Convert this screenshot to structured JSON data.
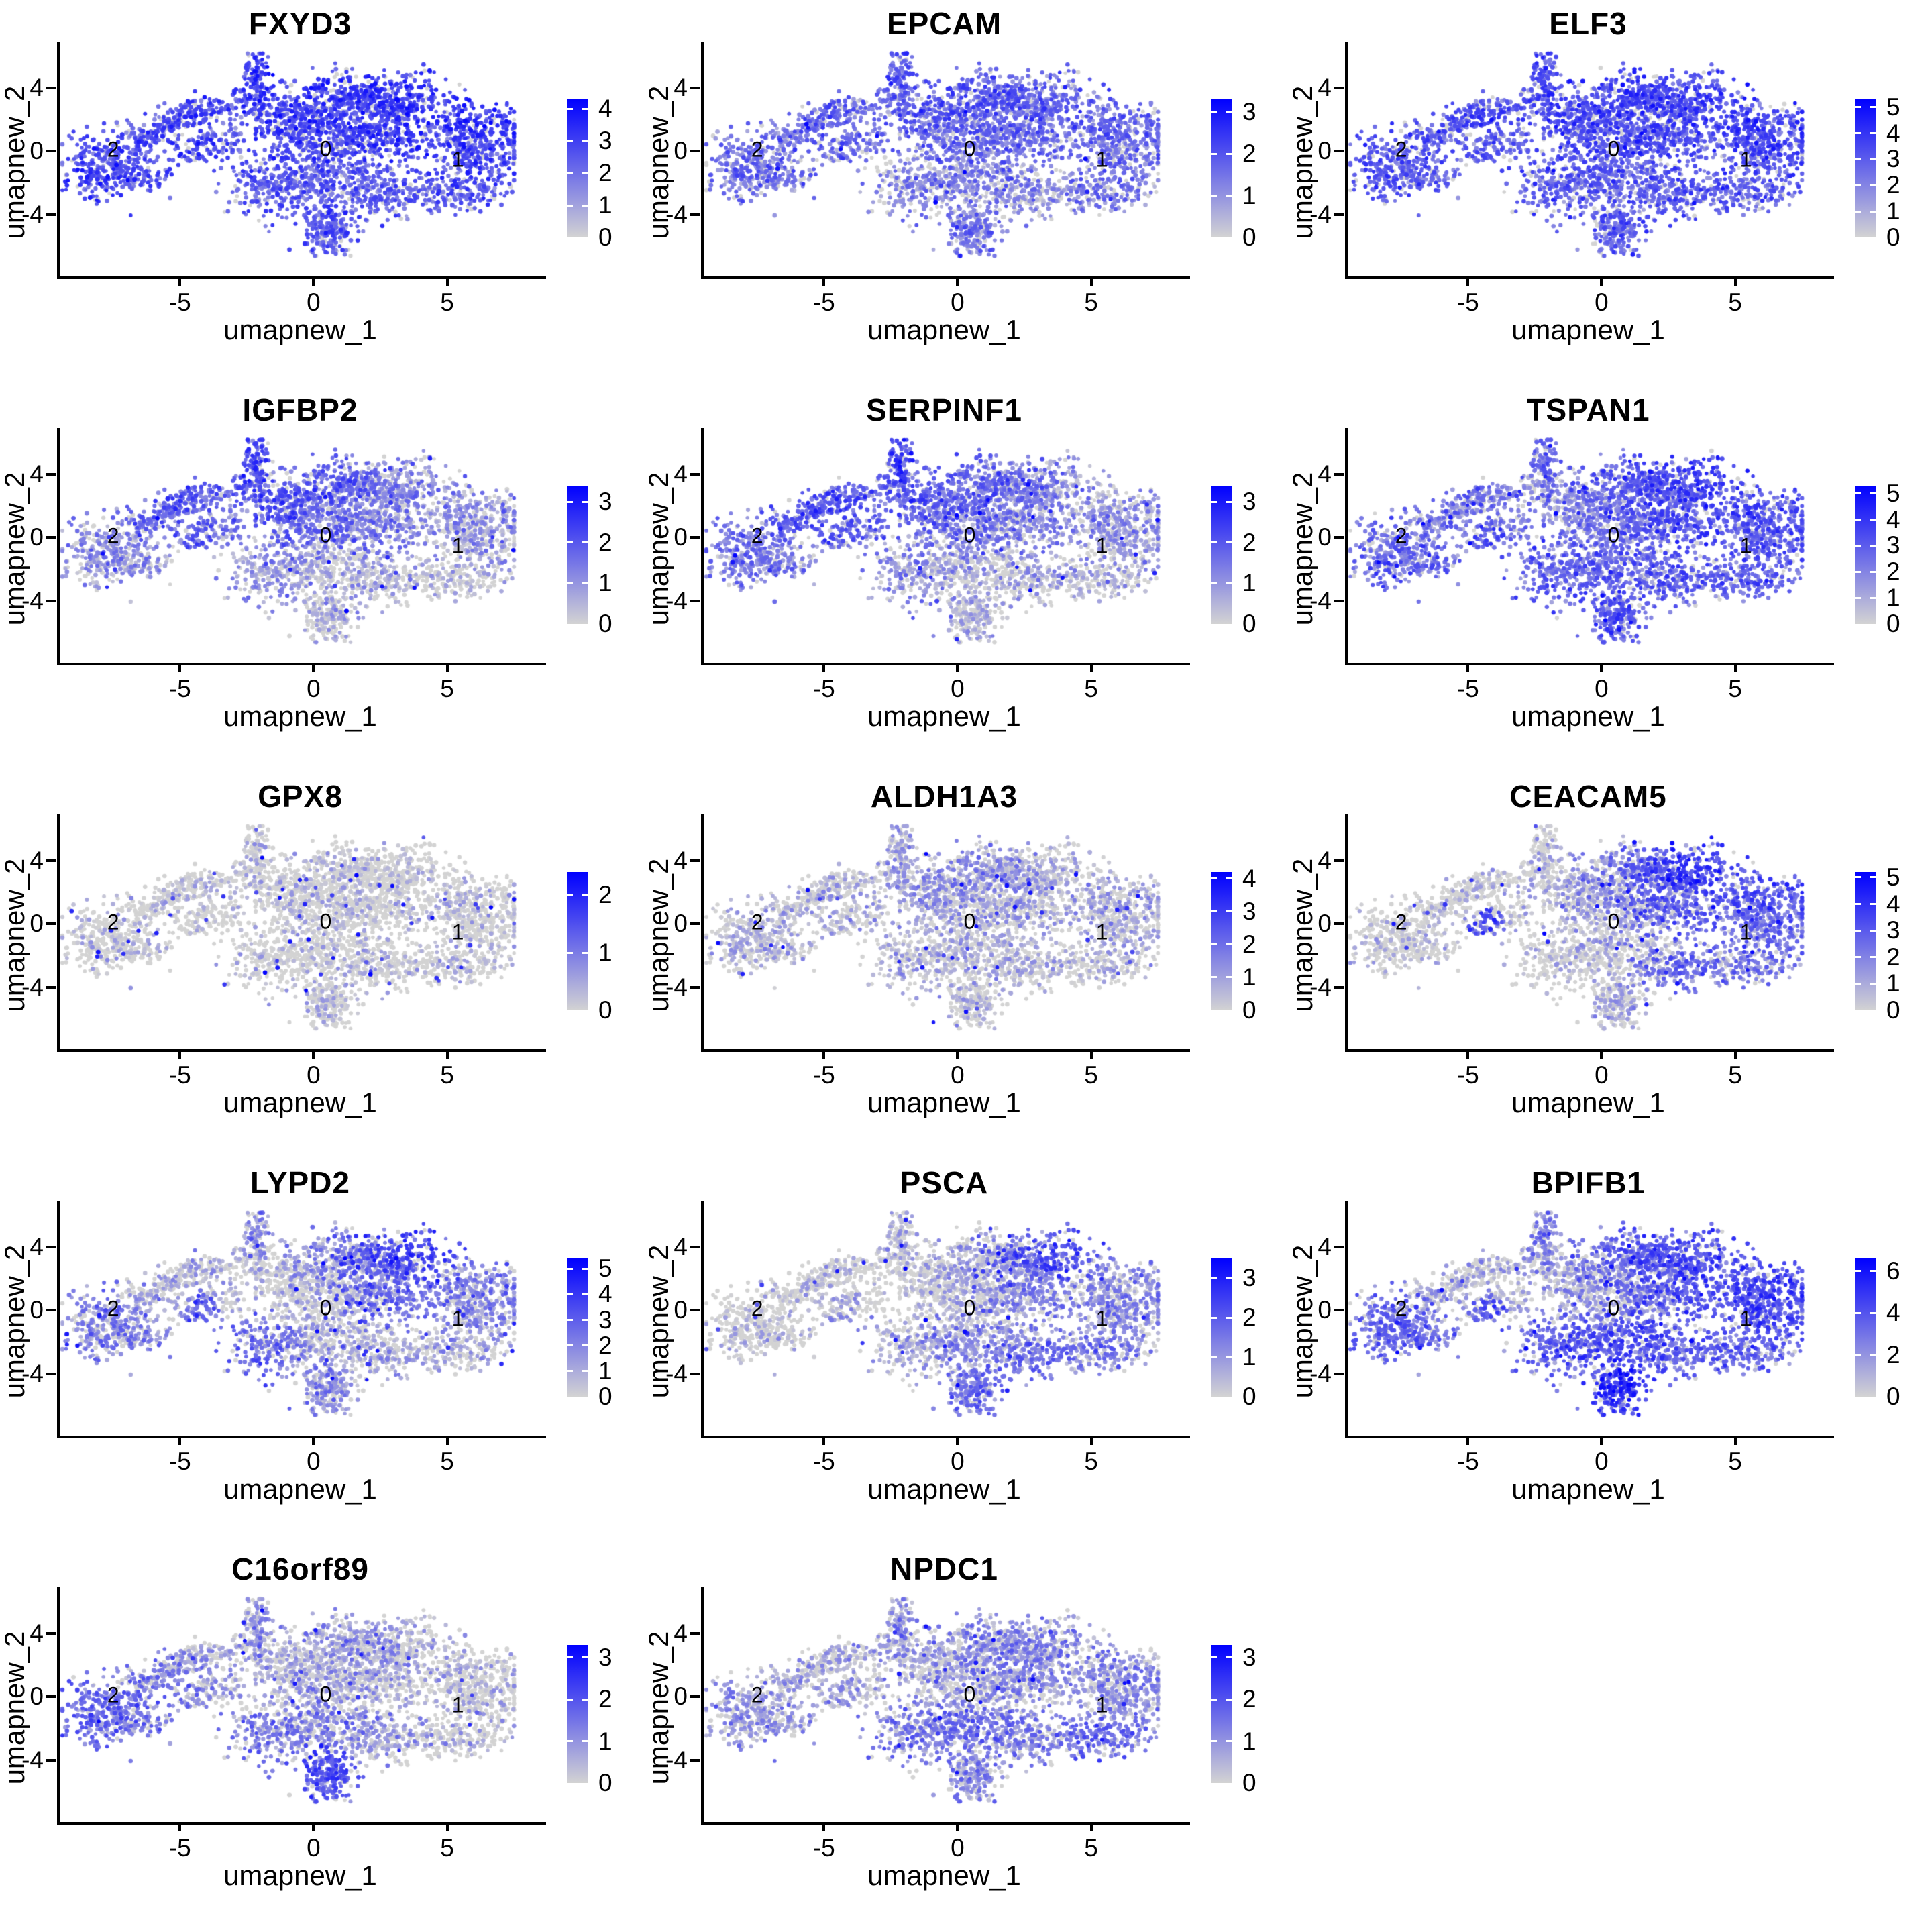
{
  "figure": {
    "background": "#ffffff",
    "axis_color": "#000000",
    "text_color": "#000000"
  },
  "chart_data": {
    "type": "scatter",
    "layout": "grid of 14 UMAP single-cell feature plots, 3 columns x 5 rows, legend colorbar right of each panel",
    "xlabel": "umapnew_1",
    "ylabel": "umapnew_2",
    "x_ticks": [
      -5,
      0,
      5
    ],
    "y_ticks": [
      -4,
      0,
      4
    ],
    "x_range": [
      -9.6,
      8.6
    ],
    "y_range": [
      -7.9,
      6.9
    ],
    "grid": "off",
    "colorscale": {
      "low_value_color": "#D3D3D3",
      "high_value_color": "#0000FF"
    },
    "cluster_labels": [
      {
        "text": "2",
        "x": -7.6,
        "y": 0.1
      },
      {
        "text": "0",
        "x": 0.35,
        "y": 0.15
      },
      {
        "text": "1",
        "x": 5.3,
        "y": -0.55
      }
    ],
    "point_blobs_comment": "shared UMAP embedding approximated as gaussian blobs: [center_x, center_y, sd_x, sd_y, n_points]; regions: left-core(cluster2), left-arm x3, left-spur, isthmus, bridge, top-spike, spike-base, center-left-top, center-top, center-top-right, center-mid, center-mid-right, center-low, center-low-left, center-low-right, right-top, right-mid, right-low(cluster1), bottom-tail",
    "point_blobs": [
      [
        -7.9,
        -0.9,
        0.75,
        1.05,
        300
      ],
      [
        -6.3,
        0.9,
        0.65,
        0.55,
        100
      ],
      [
        -5.2,
        1.9,
        0.6,
        0.45,
        90
      ],
      [
        -4.2,
        2.6,
        0.55,
        0.4,
        80
      ],
      [
        -6.4,
        -1.6,
        0.6,
        0.5,
        70
      ],
      [
        -4.4,
        0.1,
        0.35,
        0.5,
        60
      ],
      [
        -3.4,
        0.9,
        0.55,
        0.7,
        70
      ],
      [
        -2.2,
        4.7,
        0.22,
        0.85,
        100
      ],
      [
        -2.4,
        3.2,
        0.45,
        0.5,
        60
      ],
      [
        -1.1,
        2.3,
        0.8,
        0.8,
        170
      ],
      [
        0.9,
        3.2,
        1.1,
        0.85,
        280
      ],
      [
        2.9,
        3.3,
        1.0,
        0.8,
        260
      ],
      [
        0.3,
        0.7,
        1.3,
        1.0,
        340
      ],
      [
        2.6,
        1.1,
        1.0,
        1.0,
        280
      ],
      [
        0.2,
        -1.9,
        1.2,
        0.9,
        320
      ],
      [
        -1.9,
        -2.4,
        0.7,
        0.9,
        170
      ],
      [
        2.7,
        -2.7,
        1.0,
        0.7,
        210
      ],
      [
        5.9,
        1.6,
        0.9,
        0.75,
        230
      ],
      [
        6.1,
        -0.3,
        0.85,
        0.8,
        230
      ],
      [
        5.4,
        -2.7,
        0.9,
        0.6,
        150
      ],
      [
        0.5,
        -4.9,
        0.5,
        0.9,
        200
      ]
    ],
    "panels": [
      {
        "gene": "FXYD3",
        "legend_ticks": [
          4,
          3,
          2,
          1,
          0
        ],
        "max": 4.3,
        "expr": [
          0.6,
          0.58,
          0.58,
          0.6,
          0.58,
          0.6,
          0.55,
          0.66,
          0.6,
          0.64,
          0.66,
          0.66,
          0.6,
          0.64,
          0.48,
          0.52,
          0.5,
          0.64,
          0.6,
          0.55,
          0.52
        ]
      },
      {
        "gene": "EPCAM",
        "legend_ticks": [
          3,
          2,
          1,
          0
        ],
        "max": 3.3,
        "expr": [
          0.42,
          0.42,
          0.45,
          0.45,
          0.4,
          0.42,
          0.4,
          0.52,
          0.45,
          0.48,
          0.5,
          0.48,
          0.42,
          0.45,
          0.32,
          0.35,
          0.32,
          0.45,
          0.42,
          0.38,
          0.4
        ]
      },
      {
        "gene": "ELF3",
        "legend_ticks": [
          5,
          4,
          3,
          2,
          1,
          0
        ],
        "max": 5.3,
        "expr": [
          0.52,
          0.52,
          0.55,
          0.55,
          0.5,
          0.52,
          0.5,
          0.58,
          0.55,
          0.6,
          0.62,
          0.62,
          0.55,
          0.6,
          0.48,
          0.5,
          0.48,
          0.6,
          0.55,
          0.5,
          0.5
        ]
      },
      {
        "gene": "IGFBP2",
        "legend_ticks": [
          3,
          2,
          1,
          0
        ],
        "max": 3.4,
        "expr": [
          0.28,
          0.48,
          0.52,
          0.52,
          0.22,
          0.45,
          0.42,
          0.6,
          0.52,
          0.55,
          0.48,
          0.3,
          0.42,
          0.32,
          0.15,
          0.28,
          0.12,
          0.28,
          0.22,
          0.1,
          0.15
        ]
      },
      {
        "gene": "SERPINF1",
        "legend_ticks": [
          3,
          2,
          1,
          0
        ],
        "max": 3.4,
        "expr": [
          0.38,
          0.52,
          0.55,
          0.55,
          0.32,
          0.48,
          0.45,
          0.62,
          0.55,
          0.52,
          0.45,
          0.32,
          0.38,
          0.28,
          0.18,
          0.28,
          0.15,
          0.28,
          0.22,
          0.12,
          0.12
        ]
      },
      {
        "gene": "TSPAN1",
        "legend_ticks": [
          5,
          4,
          3,
          2,
          1,
          0
        ],
        "max": 5.3,
        "expr": [
          0.45,
          0.4,
          0.4,
          0.4,
          0.45,
          0.55,
          0.35,
          0.45,
          0.3,
          0.3,
          0.5,
          0.62,
          0.4,
          0.55,
          0.45,
          0.5,
          0.5,
          0.55,
          0.5,
          0.5,
          0.52
        ]
      },
      {
        "gene": "GPX8",
        "legend_ticks": [
          2,
          1,
          0
        ],
        "max": 2.4,
        "expr": [
          0.08,
          0.05,
          0.05,
          0.05,
          0.06,
          0.05,
          0.04,
          0.05,
          0.04,
          0.05,
          0.06,
          0.06,
          0.05,
          0.06,
          0.04,
          0.05,
          0.04,
          0.06,
          0.05,
          0.04,
          0.05
        ]
      },
      {
        "gene": "ALDH1A3",
        "legend_ticks": [
          4,
          3,
          2,
          1,
          0
        ],
        "max": 4.2,
        "expr": [
          0.14,
          0.12,
          0.12,
          0.12,
          0.12,
          0.15,
          0.12,
          0.18,
          0.16,
          0.25,
          0.25,
          0.15,
          0.18,
          0.15,
          0.12,
          0.14,
          0.12,
          0.18,
          0.14,
          0.1,
          0.12
        ]
      },
      {
        "gene": "CEACAM5",
        "legend_ticks": [
          5,
          4,
          3,
          2,
          1,
          0
        ],
        "max": 5.2,
        "expr": [
          0.04,
          0.04,
          0.05,
          0.08,
          0.04,
          0.55,
          0.1,
          0.08,
          0.1,
          0.12,
          0.35,
          0.68,
          0.18,
          0.5,
          0.1,
          0.08,
          0.45,
          0.55,
          0.4,
          0.35,
          0.15
        ]
      },
      {
        "gene": "LYPD2",
        "legend_ticks": [
          5,
          4,
          3,
          2,
          1,
          0
        ],
        "max": 5.4,
        "expr": [
          0.35,
          0.15,
          0.12,
          0.12,
          0.3,
          0.5,
          0.12,
          0.3,
          0.15,
          0.08,
          0.3,
          0.6,
          0.1,
          0.42,
          0.15,
          0.45,
          0.15,
          0.35,
          0.25,
          0.18,
          0.3
        ]
      },
      {
        "gene": "PSCA",
        "legend_ticks": [
          3,
          2,
          1,
          0
        ],
        "max": 3.5,
        "expr": [
          0.08,
          0.08,
          0.08,
          0.08,
          0.1,
          0.2,
          0.05,
          0.15,
          0.1,
          0.06,
          0.2,
          0.55,
          0.15,
          0.35,
          0.25,
          0.2,
          0.4,
          0.3,
          0.3,
          0.35,
          0.4
        ]
      },
      {
        "gene": "BPIFB1",
        "legend_ticks": [
          6,
          4,
          2,
          0
        ],
        "max": 6.6,
        "expr": [
          0.45,
          0.15,
          0.12,
          0.12,
          0.4,
          0.5,
          0.15,
          0.35,
          0.2,
          0.2,
          0.45,
          0.6,
          0.25,
          0.55,
          0.55,
          0.5,
          0.5,
          0.6,
          0.55,
          0.45,
          0.7
        ]
      },
      {
        "gene": "C16orf89",
        "legend_ticks": [
          3,
          2,
          1,
          0
        ],
        "max": 3.3,
        "expr": [
          0.45,
          0.35,
          0.3,
          0.25,
          0.4,
          0.3,
          0.2,
          0.25,
          0.2,
          0.15,
          0.22,
          0.15,
          0.18,
          0.15,
          0.3,
          0.35,
          0.2,
          0.08,
          0.08,
          0.1,
          0.55
        ]
      },
      {
        "gene": "NPDC1",
        "legend_ticks": [
          3,
          2,
          1,
          0
        ],
        "max": 3.3,
        "expr": [
          0.25,
          0.2,
          0.18,
          0.18,
          0.22,
          0.25,
          0.15,
          0.25,
          0.2,
          0.18,
          0.3,
          0.3,
          0.2,
          0.28,
          0.4,
          0.35,
          0.35,
          0.3,
          0.28,
          0.45,
          0.3
        ]
      }
    ]
  }
}
